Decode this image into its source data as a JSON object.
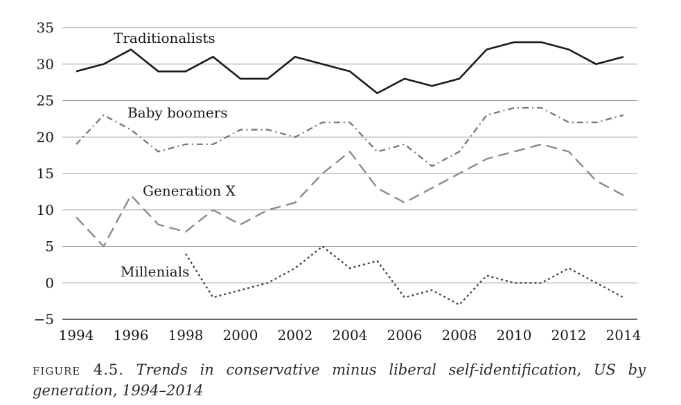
{
  "chart_data": {
    "type": "line",
    "x": [
      1994,
      1995,
      1996,
      1997,
      1998,
      1999,
      2000,
      2001,
      2002,
      2003,
      2004,
      2005,
      2006,
      2007,
      2008,
      2009,
      2010,
      2011,
      2012,
      2013,
      2014
    ],
    "x_ticks": [
      "1994",
      "1996",
      "1998",
      "2000",
      "2002",
      "2004",
      "2006",
      "2008",
      "2010",
      "2012",
      "2014"
    ],
    "y_ticks": [
      "35",
      "30",
      "25",
      "20",
      "15",
      "10",
      "5",
      "0",
      "−5"
    ],
    "ylim": [
      -5,
      35
    ],
    "xlim": [
      1994,
      2014
    ],
    "grid": "horizontal",
    "legend": "inline labels",
    "series": [
      {
        "name": "Traditionalists",
        "color": "#1a1a1a",
        "style": "solid",
        "values": [
          29,
          30,
          32,
          29,
          29,
          31,
          28,
          28,
          31,
          30,
          29,
          26,
          28,
          27,
          28,
          32,
          33,
          33,
          32,
          30,
          31
        ]
      },
      {
        "name": "Baby boomers",
        "color": "#7a7a7a",
        "style": "dash-dot",
        "values": [
          19,
          23,
          21,
          18,
          19,
          19,
          21,
          21,
          20,
          22,
          22,
          18,
          19,
          16,
          18,
          23,
          24,
          24,
          22,
          22,
          23
        ]
      },
      {
        "name": "Generation X",
        "color": "#8a8a8a",
        "style": "long-dash",
        "values": [
          9,
          5,
          12,
          8,
          7,
          10,
          8,
          10,
          11,
          15,
          18,
          13,
          11,
          13,
          15,
          17,
          18,
          19,
          18,
          14,
          12
        ]
      },
      {
        "name": "Millenials",
        "color": "#444444",
        "style": "dotted",
        "values": [
          null,
          null,
          null,
          null,
          4,
          -2,
          -1,
          0,
          2,
          5,
          2,
          3,
          -2,
          -1,
          -3,
          1,
          0,
          0,
          2,
          0,
          -2
        ]
      }
    ]
  },
  "caption": {
    "figure_label": "figure 4.5.",
    "title": "Trends in conservative minus liberal self-identification, US by generation, 1994–2014"
  }
}
